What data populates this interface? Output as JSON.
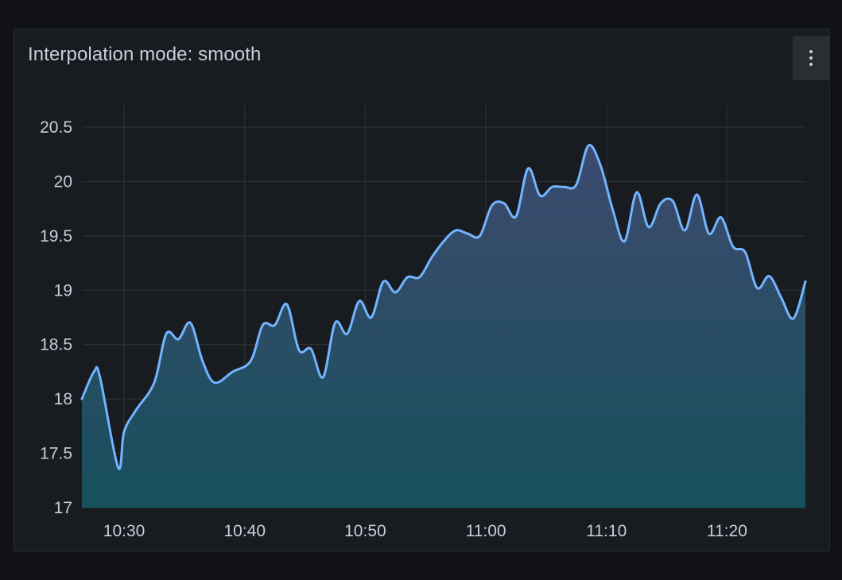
{
  "panel": {
    "title": "Interpolation mode: smooth",
    "menu_icon": "kebab-menu-icon"
  },
  "colors": {
    "background": "#111217",
    "panel": "#181b1f",
    "line": "#73b4ff",
    "fill_top": "#3d4a6e",
    "fill_bottom": "#17505d",
    "grid": "#2c3036"
  },
  "chart_data": {
    "type": "area",
    "title": "Interpolation mode: smooth",
    "xlabel": "",
    "ylabel": "",
    "xlim": [
      "10:26:30",
      "11:26:30"
    ],
    "ylim": [
      17,
      20.5
    ],
    "y_ticks": [
      "17",
      "17.5",
      "18",
      "18.5",
      "19",
      "19.5",
      "20",
      "20.5"
    ],
    "x_ticks": [
      "10:30",
      "10:40",
      "10:50",
      "11:00",
      "11:10",
      "11:20"
    ],
    "grid": true,
    "legend": "none",
    "interpolation": "smooth",
    "series": [
      {
        "x": [
          "10:26:30",
          "10:27:30",
          "10:28:00",
          "10:29:30",
          "10:30:00",
          "10:31:00",
          "10:32:30",
          "10:33:30",
          "10:34:30",
          "10:35:30",
          "10:36:30",
          "10:37:30",
          "10:39:00",
          "10:40:30",
          "10:41:30",
          "10:42:30",
          "10:43:30",
          "10:44:30",
          "10:45:30",
          "10:46:30",
          "10:47:30",
          "10:48:30",
          "10:49:30",
          "10:50:30",
          "10:51:30",
          "10:52:30",
          "10:53:30",
          "10:54:30",
          "10:55:30",
          "10:56:30",
          "10:57:30",
          "10:58:30",
          "10:59:30",
          "11:00:30",
          "11:01:30",
          "11:02:30",
          "11:03:30",
          "11:04:30",
          "11:05:30",
          "11:06:30",
          "11:07:30",
          "11:08:30",
          "11:09:30",
          "11:10:30",
          "11:11:30",
          "11:12:30",
          "11:13:30",
          "11:14:30",
          "11:15:30",
          "11:16:30",
          "11:17:30",
          "11:18:30",
          "11:19:30",
          "11:20:30",
          "11:21:30",
          "11:22:30",
          "11:23:30",
          "11:24:30",
          "11:25:30",
          "11:26:30"
        ],
        "y": [
          18.0,
          18.25,
          18.2,
          17.37,
          17.7,
          17.9,
          18.15,
          18.6,
          18.55,
          18.7,
          18.35,
          18.15,
          18.25,
          18.35,
          18.68,
          18.68,
          18.87,
          18.45,
          18.46,
          18.2,
          18.7,
          18.6,
          18.9,
          18.75,
          19.08,
          18.98,
          19.12,
          19.12,
          19.3,
          19.45,
          19.55,
          19.52,
          19.5,
          19.78,
          19.8,
          19.68,
          20.12,
          19.87,
          19.95,
          19.95,
          19.97,
          20.33,
          20.15,
          19.75,
          19.45,
          19.9,
          19.58,
          19.8,
          19.82,
          19.55,
          19.88,
          19.52,
          19.67,
          19.4,
          19.35,
          19.02,
          19.13,
          18.93,
          18.74,
          19.08
        ]
      }
    ]
  }
}
